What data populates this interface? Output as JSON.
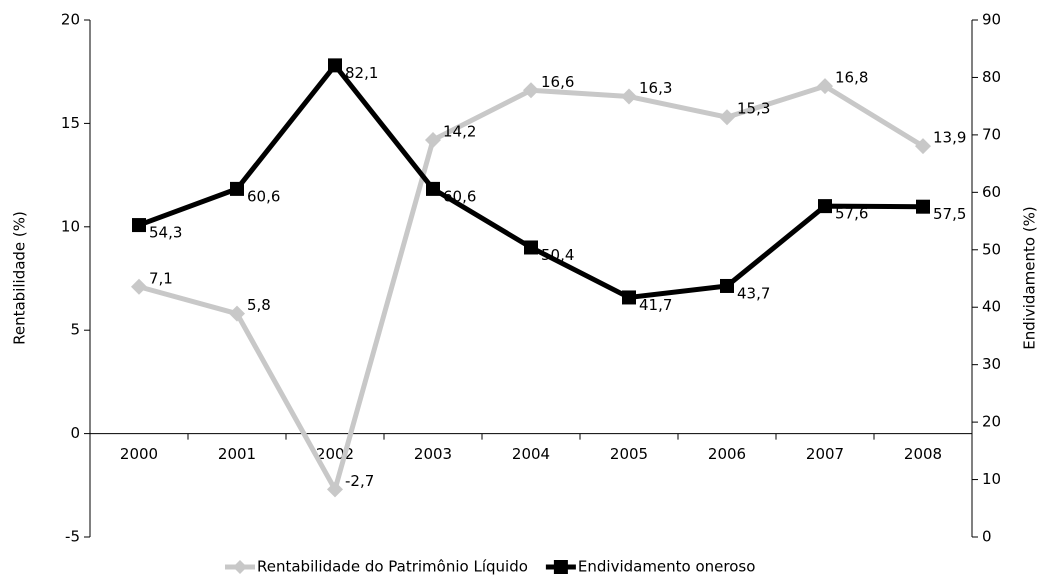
{
  "chart_data": {
    "type": "line",
    "categories": [
      "2000",
      "2001",
      "2002",
      "2003",
      "2004",
      "2005",
      "2006",
      "2007",
      "2008"
    ],
    "series": [
      {
        "name": "Rentabilidade do Patrimônio Líquido",
        "color": "#c8c8c8",
        "marker": "diamond",
        "axis": "y",
        "values": [
          7.1,
          5.8,
          -2.7,
          14.2,
          16.6,
          16.3,
          15.3,
          16.8,
          13.9
        ],
        "value_labels": [
          "7,1",
          "5,8",
          "-2,7",
          "14,2",
          "16,6",
          "16,3",
          "15,3",
          "16,8",
          "13,9"
        ]
      },
      {
        "name": "Endividamento oneroso",
        "color": "#000000",
        "marker": "square",
        "axis": "y2",
        "values": [
          54.3,
          60.6,
          82.1,
          60.6,
          50.4,
          41.7,
          43.7,
          57.6,
          57.5
        ],
        "value_labels": [
          "54,3",
          "60,6",
          "82,1",
          "60,6",
          "50,4",
          "41,7",
          "43,7",
          "57,6",
          "57,5"
        ]
      }
    ],
    "ylabel": "Rentabilidade (%)",
    "y2label": "Endividamento (%)",
    "ylim": [
      -5,
      20
    ],
    "yticks": [
      -5,
      0,
      5,
      10,
      15,
      20
    ],
    "y2lim": [
      0,
      90
    ],
    "y2ticks": [
      0,
      10,
      20,
      30,
      40,
      50,
      60,
      70,
      80,
      90
    ],
    "legend": "bottom"
  }
}
